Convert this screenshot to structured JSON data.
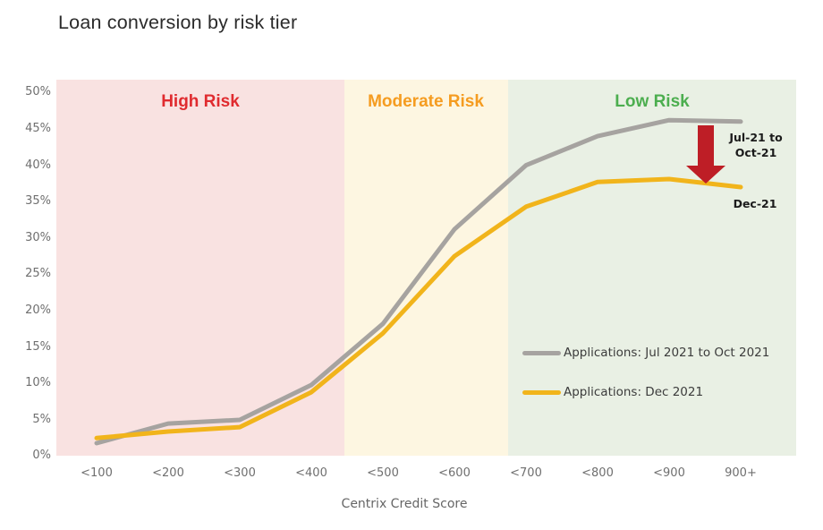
{
  "title": "Loan conversion by risk tier",
  "chart_data": {
    "type": "line",
    "categories": [
      "<100",
      "<200",
      "<300",
      "<400",
      "<500",
      "<600",
      "<700",
      "<800",
      "<900",
      "900+"
    ],
    "xlabel": "Centrix Credit Score",
    "ylabel": "",
    "ylim": [
      0,
      50
    ],
    "ytick_step": 5,
    "yticklabels": [
      "0%",
      "5%",
      "10%",
      "15%",
      "20%",
      "25%",
      "30%",
      "35%",
      "40%",
      "45%",
      "50%"
    ],
    "grid": false,
    "legend_position": "inside-right",
    "series": [
      {
        "name": "Applications: Jul 2021 to Oct 2021",
        "color": "#a6a3a0",
        "values": [
          1.6,
          4.3,
          4.8,
          9.6,
          18.0,
          31.0,
          39.8,
          43.8,
          46.0,
          45.8
        ]
      },
      {
        "name": "Applications: Dec 2021",
        "color": "#f1b41b",
        "values": [
          2.3,
          3.2,
          3.8,
          8.6,
          16.7,
          27.3,
          34.1,
          37.5,
          37.9,
          36.8
        ]
      }
    ],
    "zones": [
      {
        "label": "High Risk",
        "label_color": "#e02b2f",
        "fill": "#f9e2e1"
      },
      {
        "label": "Moderate Risk",
        "label_color": "#f59c20",
        "fill": "#fdf6e1"
      },
      {
        "label": "Low Risk",
        "label_color": "#4cae4f",
        "fill": "#e9f0e4"
      }
    ],
    "annotations": {
      "arrow_color": "#be1e26",
      "drop_label_line1": "Jul-21 to",
      "drop_label_line2": "Oct-21",
      "bottom_label": "Dec-21"
    }
  }
}
